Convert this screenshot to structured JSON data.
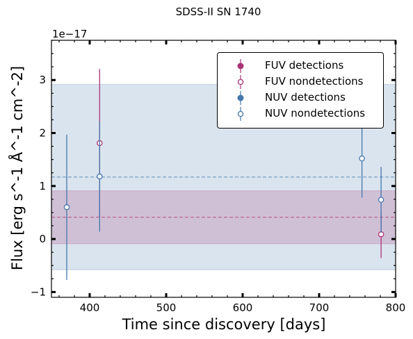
{
  "chart_data": {
    "type": "scatter",
    "title": "SDSS-II SN 1740",
    "xlabel": "Time since discovery [days]",
    "ylabel": "Flux [erg s^-1 Å^-1 cm^-2]",
    "offset_label": "1e−17",
    "xlim": [
      350,
      800
    ],
    "ylim": [
      -1.1,
      3.75
    ],
    "x_ticks": [
      400,
      500,
      600,
      700,
      800
    ],
    "y_ticks": [
      -1,
      0,
      1,
      2,
      3
    ],
    "x_tick_labels": [
      "400",
      "500",
      "600",
      "700",
      "800"
    ],
    "y_tick_labels": [
      "−1",
      "0",
      "1",
      "2",
      "3"
    ],
    "legend_position": "upper-right",
    "bands": [
      {
        "series": "NUV",
        "center": 1.17,
        "low": -0.58,
        "high": 2.92,
        "color": "#4477aa"
      },
      {
        "series": "FUV",
        "center": 0.41,
        "low": -0.09,
        "high": 0.91,
        "color": "#aa3377"
      }
    ],
    "series": [
      {
        "name": "FUV detections",
        "color": "#aa3377",
        "marker": "filled",
        "points": []
      },
      {
        "name": "FUV nondetections",
        "color": "#aa3377",
        "marker": "open",
        "points": [
          {
            "x": 413,
            "y": 1.81,
            "err": 1.4
          },
          {
            "x": 781,
            "y": 0.09,
            "err": 0.45
          }
        ]
      },
      {
        "name": "NUV detections",
        "color": "#4477aa",
        "marker": "filled",
        "points": []
      },
      {
        "name": "NUV nondetections",
        "color": "#4477aa",
        "marker": "open",
        "points": [
          {
            "x": 370,
            "y": 0.6,
            "err": 1.37
          },
          {
            "x": 413,
            "y": 1.18,
            "err": 1.04
          },
          {
            "x": 756,
            "y": 1.52,
            "err": 0.74
          },
          {
            "x": 781,
            "y": 0.74,
            "err": 0.62
          }
        ]
      }
    ]
  }
}
